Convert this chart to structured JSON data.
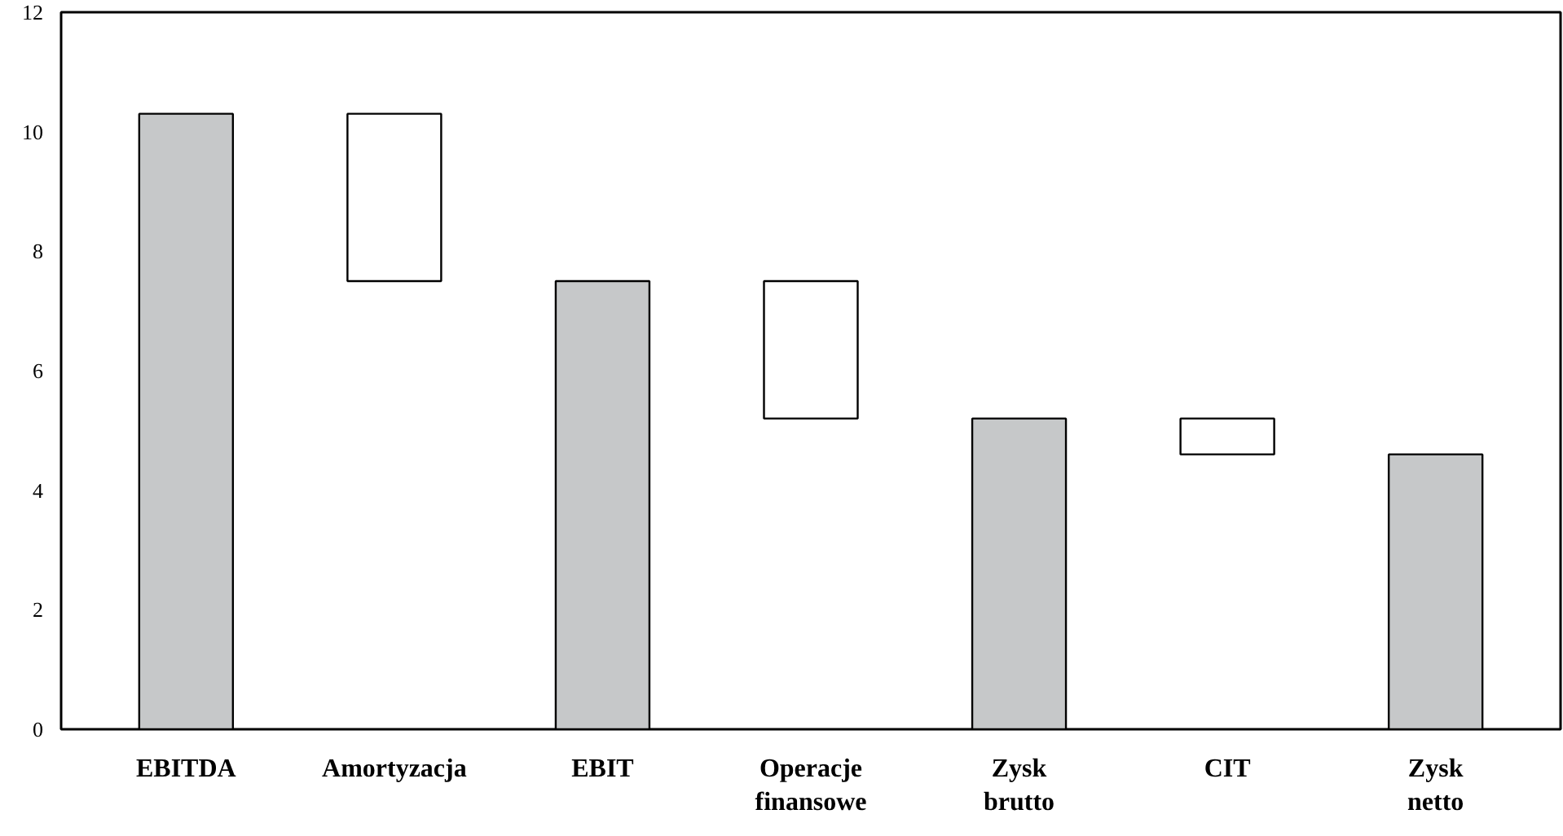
{
  "chart_data": {
    "type": "bar",
    "categories": [
      "EBITDA",
      "Amortyzacja",
      "EBIT",
      "Operacje\nfinansowe",
      "Zysk\nbrutto",
      "CIT",
      "Zysk\nnetto"
    ],
    "values": [
      10.3,
      2.8,
      7.5,
      2.3,
      5.2,
      0.6,
      4.6
    ],
    "base": [
      0,
      7.5,
      0,
      5.2,
      0,
      4.6,
      0
    ],
    "colors": [
      "#c6c8c9",
      "#ffffff",
      "#c6c8c9",
      "#ffffff",
      "#c6c8c9",
      "#ffffff",
      "#c6c8c9"
    ],
    "ylim": [
      0,
      12
    ],
    "yticks": [
      0,
      2,
      4,
      6,
      8,
      10,
      12
    ],
    "grid": false
  }
}
